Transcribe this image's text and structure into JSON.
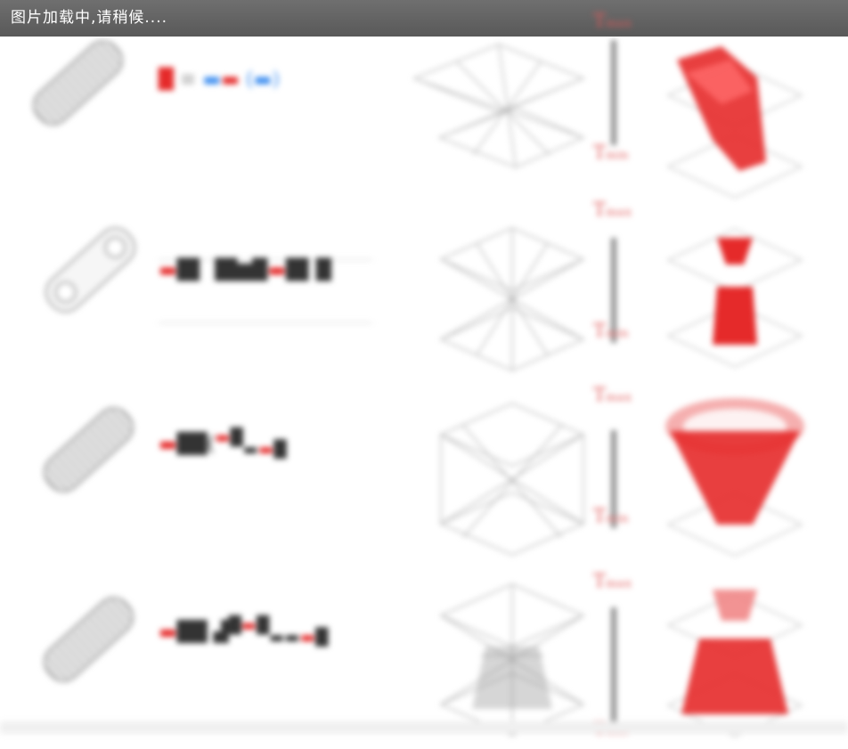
{
  "loading": {
    "text": "图片加载中,请稍候...."
  },
  "figure": {
    "axis_top_label": "Tₘₐₓ",
    "axis_bottom_label": "Tₘᵢₙ",
    "rows": [
      {
        "id": "row-1"
      },
      {
        "id": "row-2"
      },
      {
        "id": "row-3"
      },
      {
        "id": "row-4"
      }
    ]
  },
  "colors": {
    "loading_bar": "#626262",
    "accent_red": "#e52a2a",
    "accent_blue": "#3f8ff0",
    "wire_gray": "#9a9a9a"
  }
}
